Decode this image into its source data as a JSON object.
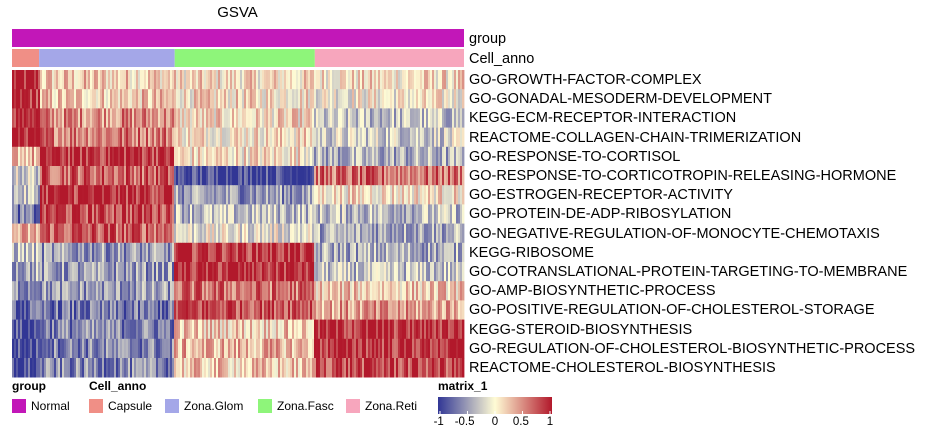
{
  "chart_data": {
    "type": "heatmap",
    "title": "GSVA",
    "top_annotations": [
      {
        "name": "group",
        "label": "group"
      },
      {
        "name": "Cell_anno",
        "label": "Cell_anno"
      }
    ],
    "rows": [
      "GO-GROWTH-FACTOR-COMPLEX",
      "GO-GONADAL-MESODERM-DEVELOPMENT",
      "KEGG-ECM-RECEPTOR-INTERACTION",
      "REACTOME-COLLAGEN-CHAIN-TRIMERIZATION",
      "GO-RESPONSE-TO-CORTISOL",
      "GO-RESPONSE-TO-CORTICOTROPIN-RELEASING-HORMONE",
      "GO-ESTROGEN-RECEPTOR-ACTIVITY",
      "GO-PROTEIN-DE-ADP-RIBOSYLATION",
      "GO-NEGATIVE-REGULATION-OF-MONOCYTE-CHEMOTAXIS",
      "KEGG-RIBOSOME",
      "GO-COTRANSLATIONAL-PROTEIN-TARGETING-TO-MEMBRANE",
      "GO-AMP-BIOSYNTHETIC-PROCESS",
      "GO-POSITIVE-REGULATION-OF-CHOLESTEROL-STORAGE",
      "KEGG-STEROID-BIOSYNTHESIS",
      "GO-REGULATION-OF-CHOLESTEROL-BIOSYNTHETIC-PROCESS",
      "REACTOME-CHOLESTEROL-BIOSYNTHESIS"
    ],
    "column_groups": [
      {
        "name": "Capsule",
        "color": "#f08f86",
        "fraction": 0.06
      },
      {
        "name": "Zona.Glom",
        "color": "#a4a7e8",
        "fraction": 0.3
      },
      {
        "name": "Zona.Fasc",
        "color": "#8ef57a",
        "fraction": 0.31
      },
      {
        "name": "Zona.Reti",
        "color": "#f7a6bd",
        "fraction": 0.33
      }
    ],
    "group_color": "#c217b8",
    "mean_values": [
      [
        0.9,
        0.2,
        0.1,
        0.1
      ],
      [
        0.9,
        0.2,
        0.1,
        0.0
      ],
      [
        1.0,
        0.5,
        0.1,
        -0.3
      ],
      [
        1.0,
        0.6,
        0.1,
        -0.2
      ],
      [
        0.3,
        0.9,
        0.1,
        -0.4
      ],
      [
        -0.2,
        0.7,
        -0.9,
        0.6
      ],
      [
        -0.3,
        0.9,
        -0.5,
        0.1
      ],
      [
        -0.7,
        0.8,
        -0.3,
        -0.3
      ],
      [
        0.3,
        0.7,
        -0.1,
        -0.4
      ],
      [
        -0.3,
        -0.5,
        0.9,
        -0.4
      ],
      [
        -0.4,
        -0.5,
        0.9,
        -0.3
      ],
      [
        -0.5,
        -0.5,
        0.6,
        0.2
      ],
      [
        -0.8,
        -0.7,
        0.8,
        0.4
      ],
      [
        -0.9,
        -0.6,
        0.2,
        0.9
      ],
      [
        -0.9,
        -0.6,
        0.3,
        0.9
      ],
      [
        -0.9,
        -0.6,
        0.2,
        0.8
      ]
    ],
    "color_scale": {
      "min": -1,
      "max": 1,
      "low": "#313695",
      "mid": "#fffcd5",
      "high": "#b2182b"
    },
    "legend": {
      "group_title": "group",
      "group_items": [
        {
          "label": "Normal",
          "color": "#c217b8"
        }
      ],
      "cell_title": "Cell_anno",
      "cell_items": [
        {
          "label": "Capsule",
          "color": "#f08f86"
        },
        {
          "label": "Zona.Glom",
          "color": "#a4a7e8"
        },
        {
          "label": "Zona.Fasc",
          "color": "#8ef57a"
        },
        {
          "label": "Zona.Reti",
          "color": "#f7a6bd"
        }
      ],
      "matrix_title": "matrix_1",
      "ticks": [
        "-1",
        "-0.5",
        "0",
        "0.5",
        "1"
      ]
    }
  }
}
